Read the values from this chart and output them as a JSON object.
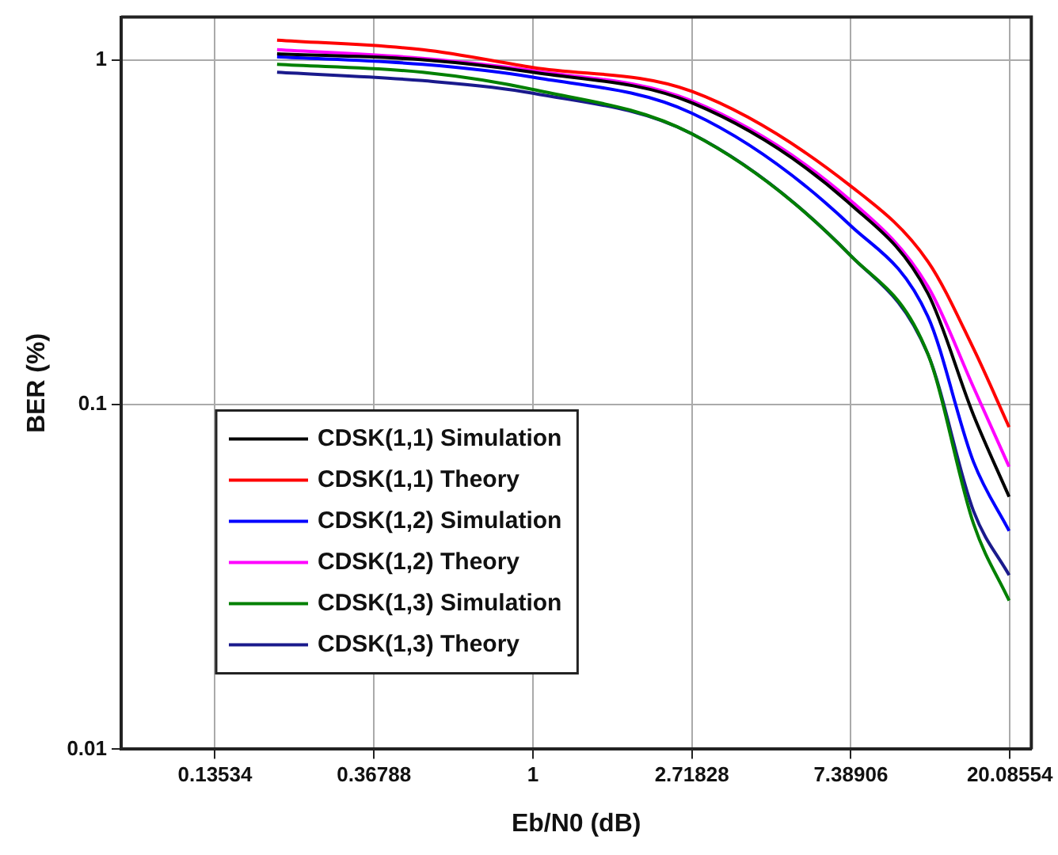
{
  "chart_data": {
    "type": "line",
    "xlabel": "Eb/N0 (dB)",
    "ylabel": "BER (%)",
    "log": "xy",
    "grid": true,
    "legend": "bottom left",
    "marker": "none",
    "line_style": "solid",
    "xlim": [
      0.075,
      23
    ],
    "xticks": [
      0.13534,
      0.36788,
      1,
      2.71828,
      7.38906,
      20.08554
    ],
    "ylim": [
      0.01,
      1.33
    ],
    "yticks": [
      0.01,
      0.1,
      1
    ],
    "x": [
      0.2,
      0.5,
      1,
      2.718,
      7.389,
      12,
      16,
      20
    ],
    "series": [
      {
        "name": "CDSK(1,1) Simulation",
        "color": "#000000",
        "values": [
          1.04,
          1.0,
          0.92,
          0.75,
          0.38,
          0.21,
          0.093,
          0.054
        ]
      },
      {
        "name": "CDSK(1,1) Theory",
        "color": "#ff0000",
        "values": [
          1.14,
          1.07,
          0.95,
          0.81,
          0.43,
          0.26,
          0.145,
          0.086
        ]
      },
      {
        "name": "CDSK(1,2) Simulation",
        "color": "#0000ff",
        "values": [
          1.02,
          0.97,
          0.89,
          0.7,
          0.33,
          0.18,
          0.068,
          0.043
        ]
      },
      {
        "name": "CDSK(1,2) Theory",
        "color": "#ff00ff",
        "values": [
          1.07,
          1.01,
          0.93,
          0.76,
          0.39,
          0.22,
          0.112,
          0.066
        ]
      },
      {
        "name": "CDSK(1,3) Simulation",
        "color": "#008000",
        "values": [
          0.97,
          0.92,
          0.82,
          0.61,
          0.27,
          0.14,
          0.045,
          0.027
        ]
      },
      {
        "name": "CDSK(1,3) Theory",
        "color": "#1a1a8c",
        "values": [
          0.92,
          0.87,
          0.8,
          0.61,
          0.27,
          0.14,
          0.049,
          0.032
        ]
      }
    ]
  }
}
